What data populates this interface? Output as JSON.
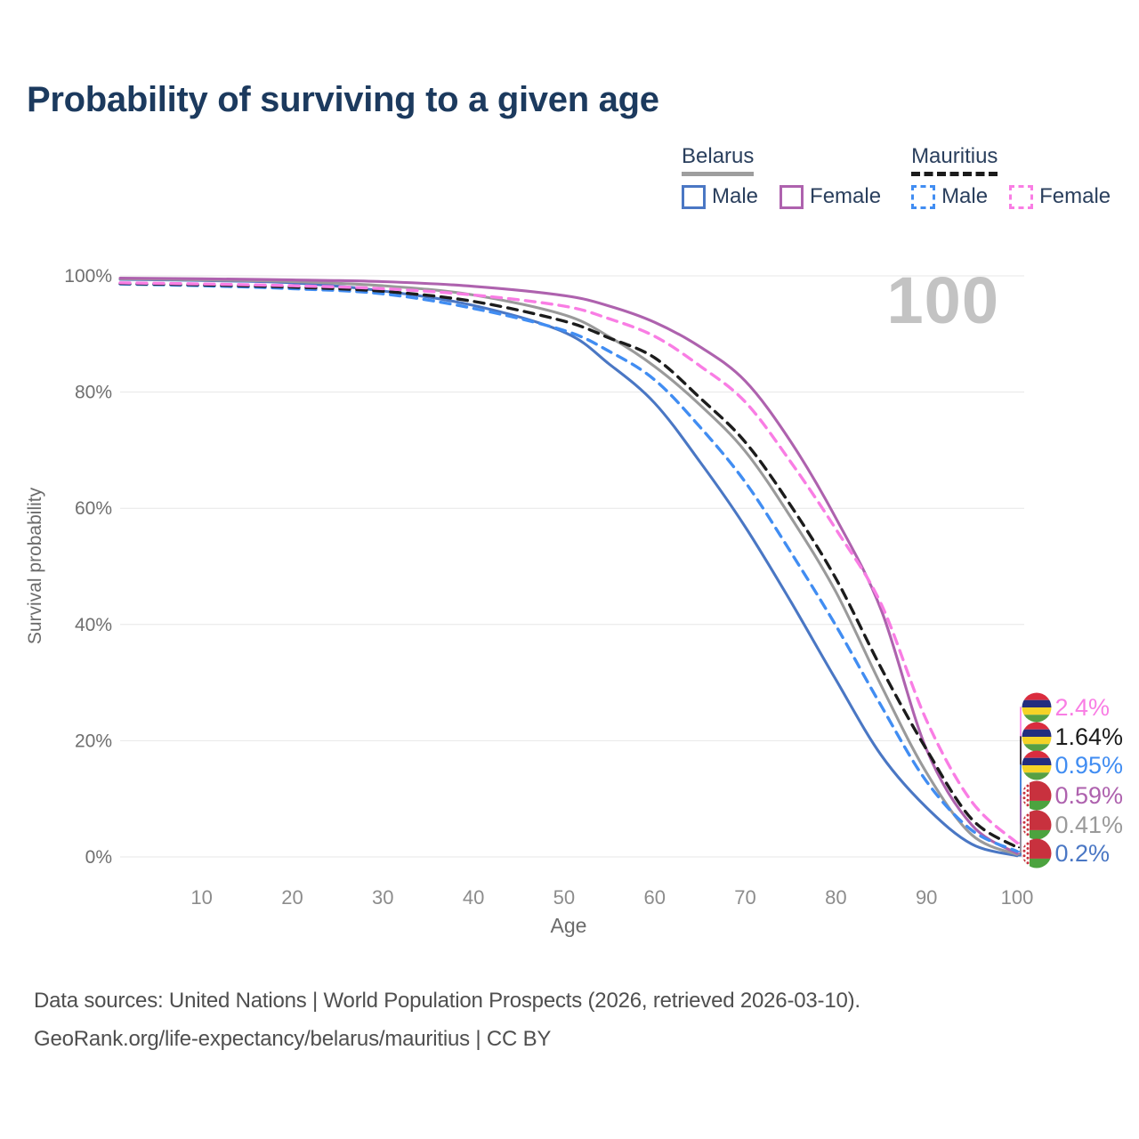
{
  "header": {
    "title": "Probability of surviving to a given age"
  },
  "watermark": "100",
  "legend": {
    "groups": [
      {
        "name": "Belarus",
        "line_style": "solid",
        "underline_color": "#9e9e9e",
        "items": [
          {
            "label": "Male",
            "color": "#4a77c4"
          },
          {
            "label": "Female",
            "color": "#ae62ae"
          }
        ]
      },
      {
        "name": "Mauritius",
        "line_style": "dashed",
        "underline_color": "#1b1b1b",
        "items": [
          {
            "label": "Male",
            "color": "#418df2"
          },
          {
            "label": "Female",
            "color": "#f97de4"
          }
        ]
      }
    ]
  },
  "chart_data": {
    "type": "line",
    "title": "Probability of surviving to a given age",
    "xlabel": "Age",
    "ylabel": "Survival probability",
    "xlim": [
      1,
      100
    ],
    "ylim": [
      0,
      100
    ],
    "grid": true,
    "legend_position": "top-right",
    "xticks": [
      10,
      20,
      30,
      40,
      50,
      60,
      70,
      80,
      90,
      100
    ],
    "yticks": [
      0,
      20,
      40,
      60,
      80,
      100
    ],
    "ytick_suffix": "%",
    "x": [
      1,
      10,
      20,
      30,
      40,
      50,
      55,
      60,
      65,
      70,
      75,
      80,
      85,
      90,
      95,
      100
    ],
    "series": [
      {
        "name": "Mauritius Female",
        "country": "Mauritius",
        "sex": "Female",
        "dash": true,
        "color": "#f97de4",
        "values": [
          98.8,
          98.6,
          98.3,
          97.8,
          96.7,
          94.8,
          92.6,
          89.6,
          84.5,
          78.3,
          68.0,
          56.4,
          43.5,
          23.5,
          9.5,
          2.4
        ]
      },
      {
        "name": "Mauritius Both sexes",
        "country": "Mauritius",
        "sex": "Both",
        "dash": true,
        "color": "#1c1c1c",
        "values": [
          98.7,
          98.45,
          98.05,
          97.35,
          95.6,
          92.2,
          89.3,
          85.9,
          79.0,
          71.4,
          60.5,
          47.9,
          32.5,
          18.5,
          6.5,
          1.64
        ]
      },
      {
        "name": "Mauritius Male",
        "country": "Mauritius",
        "sex": "Male",
        "dash": true,
        "color": "#418df2",
        "values": [
          98.6,
          98.3,
          97.8,
          96.9,
          94.4,
          90.6,
          87.0,
          82.1,
          74.0,
          64.5,
          52.5,
          39.8,
          26.0,
          13.0,
          4.6,
          0.95
        ]
      },
      {
        "name": "Belarus Female",
        "country": "Belarus",
        "sex": "Female",
        "dash": false,
        "color": "#ae62ae",
        "values": [
          99.6,
          99.5,
          99.3,
          99.0,
          98.2,
          96.6,
          94.8,
          92.0,
          87.8,
          81.9,
          71.5,
          58.3,
          42.5,
          18.5,
          5.5,
          0.59
        ]
      },
      {
        "name": "Belarus Both sexes",
        "country": "Belarus",
        "sex": "Both",
        "dash": false,
        "color": "#9a9a9a",
        "values": [
          99.5,
          99.3,
          99.0,
          98.3,
          96.7,
          93.3,
          89.5,
          84.4,
          77.8,
          69.8,
          58.5,
          45.6,
          29.5,
          14.5,
          3.8,
          0.41
        ]
      },
      {
        "name": "Belarus Male",
        "country": "Belarus",
        "sex": "Male",
        "dash": false,
        "color": "#4a77c4",
        "values": [
          99.4,
          99.2,
          98.8,
          97.4,
          94.9,
          90.3,
          84.8,
          78.1,
          68.0,
          56.8,
          44.0,
          30.5,
          17.5,
          8.5,
          2.2,
          0.2
        ]
      }
    ],
    "end_labels": [
      {
        "text": "2.4%",
        "color": "#f97de4",
        "flag": "mauritius"
      },
      {
        "text": "1.64%",
        "color": "#1c1c1c",
        "flag": "mauritius"
      },
      {
        "text": "0.95%",
        "color": "#418df2",
        "flag": "mauritius"
      },
      {
        "text": "0.59%",
        "color": "#ae62ae",
        "flag": "belarus"
      },
      {
        "text": "0.41%",
        "color": "#9a9a9a",
        "flag": "belarus"
      },
      {
        "text": "0.2%",
        "color": "#4a77c4",
        "flag": "belarus"
      }
    ],
    "age_counter": "100"
  },
  "flags": {
    "mauritius": [
      "#da2c3e",
      "#232d7e",
      "#f5d327",
      "#57a044"
    ],
    "belarus": {
      "red": "#c8313e",
      "green": "#4ca33f",
      "ornament_bg": "#ffffff",
      "ornament_fg": "#c8313e"
    }
  },
  "footer": {
    "line1": "Data sources: United Nations | World Population Prospects (2026, retrieved 2026-03-10).",
    "line2": "GeoRank.org/life-expectancy/belarus/mauritius | CC BY"
  }
}
